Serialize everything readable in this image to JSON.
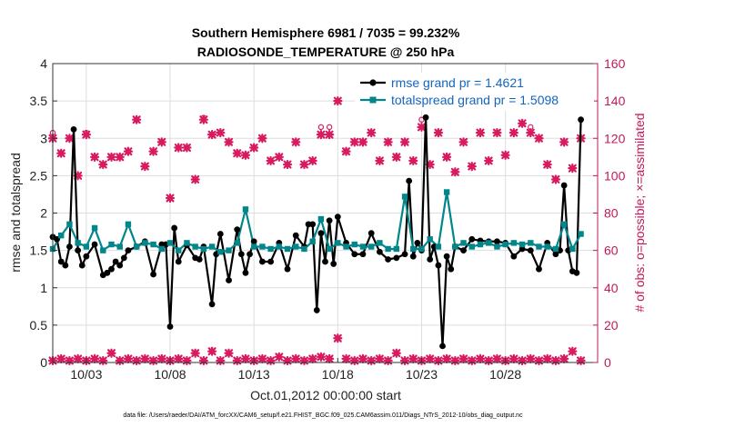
{
  "chart_data": {
    "type": "line",
    "title_line1": "Southern Hemisphere 6981 / 7035 = 99.232%",
    "title_line2": "RADIOSONDE_TEMPERATURE @ 250 hPa",
    "xlabel": "Oct.01,2012 00:00:00 start",
    "ylabel": "rmse and totalspread",
    "ylabel_right": "# of obs: o=possible; ×=assimilated",
    "xlim": [
      1,
      33.5
    ],
    "ylim": [
      0,
      4
    ],
    "ylim_right": [
      0,
      160
    ],
    "x_ticks": [
      3,
      8,
      13,
      18,
      23,
      28
    ],
    "x_tick_labels": [
      "10/03",
      "10/08",
      "10/13",
      "10/18",
      "10/23",
      "10/28"
    ],
    "y_ticks": [
      0,
      0.5,
      1,
      1.5,
      2,
      2.5,
      3,
      3.5,
      4
    ],
    "y_tick_labels": [
      "0",
      "0.5",
      "1",
      "1.5",
      "2",
      "2.5",
      "3",
      "3.5",
      "4"
    ],
    "y_right_ticks": [
      0,
      20,
      40,
      60,
      80,
      100,
      120,
      140,
      160
    ],
    "y_right_tick_labels": [
      "0",
      "20",
      "40",
      "60",
      "80",
      "100",
      "120",
      "140",
      "160"
    ],
    "grid": true,
    "legend_position": "top-right",
    "colors": {
      "rmse": "#000000",
      "spread": "#00868b",
      "obs": "#d81b60"
    },
    "series": [
      {
        "name": "rmse grand pr = 1.4621",
        "x": [
          1.0,
          1.25,
          1.5,
          1.75,
          2.0,
          2.25,
          2.5,
          2.75,
          3.0,
          3.5,
          4.0,
          4.25,
          4.5,
          4.75,
          5.0,
          5.25,
          5.5,
          6.0,
          6.5,
          7.0,
          7.5,
          7.75,
          8.0,
          8.25,
          8.5,
          9.0,
          9.5,
          9.75,
          10.0,
          10.5,
          10.75,
          11.0,
          11.5,
          12.0,
          12.25,
          12.5,
          12.75,
          13.0,
          13.5,
          14.0,
          14.5,
          15.0,
          15.5,
          16.0,
          16.25,
          16.5,
          16.75,
          17.0,
          17.25,
          17.5,
          17.75,
          18.0,
          18.5,
          19.0,
          19.5,
          20.0,
          20.5,
          21.0,
          21.5,
          22.0,
          22.25,
          22.5,
          22.75,
          23.0,
          23.25,
          23.5,
          23.75,
          24.0,
          24.25,
          24.5,
          24.75,
          25.0,
          25.5,
          26.0,
          26.5,
          27.0,
          27.5,
          28.0,
          28.5,
          29.0,
          29.5,
          30.0,
          30.5,
          31.0,
          31.25,
          31.5,
          31.75,
          32.0,
          32.25,
          32.5
        ],
        "values": [
          1.68,
          1.65,
          1.35,
          1.3,
          1.55,
          3.12,
          1.5,
          1.3,
          1.42,
          1.58,
          1.17,
          1.2,
          1.25,
          1.35,
          1.3,
          1.4,
          1.5,
          1.55,
          1.62,
          1.18,
          1.58,
          1.58,
          0.48,
          1.8,
          1.35,
          1.57,
          1.4,
          1.38,
          1.55,
          0.78,
          1.45,
          1.72,
          1.1,
          1.78,
          1.45,
          1.2,
          1.45,
          1.62,
          1.35,
          1.35,
          1.6,
          1.25,
          1.7,
          1.55,
          1.85,
          1.85,
          0.7,
          1.73,
          1.35,
          1.9,
          1.32,
          1.95,
          1.6,
          1.45,
          1.45,
          1.73,
          1.48,
          1.38,
          1.4,
          1.45,
          2.43,
          1.42,
          1.6,
          1.5,
          3.28,
          1.38,
          1.55,
          1.3,
          0.22,
          1.42,
          1.25,
          1.55,
          1.5,
          1.65,
          1.63,
          1.62,
          1.62,
          1.6,
          1.42,
          1.52,
          1.5,
          1.25,
          1.6,
          1.45,
          1.5,
          2.37,
          1.5,
          1.22,
          1.2,
          3.25
        ]
      },
      {
        "name": "totalspread grand pr = 1.5098",
        "x": [
          1.0,
          1.5,
          2.0,
          2.5,
          3.0,
          3.5,
          4.0,
          4.5,
          5.0,
          5.5,
          6.0,
          6.5,
          7.0,
          7.5,
          8.0,
          8.5,
          9.0,
          9.5,
          10.0,
          10.5,
          11.0,
          11.5,
          12.0,
          12.5,
          13.0,
          13.5,
          14.0,
          14.5,
          15.0,
          15.5,
          16.0,
          16.5,
          17.0,
          17.5,
          18.0,
          18.5,
          19.0,
          19.5,
          20.0,
          20.5,
          21.0,
          21.5,
          22.0,
          22.5,
          23.0,
          23.5,
          24.0,
          24.5,
          25.0,
          25.5,
          26.0,
          26.5,
          27.0,
          27.5,
          28.0,
          28.5,
          29.0,
          29.5,
          30.0,
          30.5,
          31.0,
          31.5,
          32.0,
          32.5
        ],
        "values": [
          1.52,
          1.7,
          1.85,
          1.6,
          1.55,
          1.8,
          1.5,
          1.58,
          1.55,
          1.85,
          1.55,
          1.6,
          1.58,
          1.52,
          1.6,
          1.5,
          1.6,
          1.55,
          1.52,
          1.55,
          1.48,
          1.5,
          1.6,
          2.05,
          1.55,
          1.55,
          1.52,
          1.55,
          1.52,
          1.55,
          1.52,
          1.62,
          1.92,
          1.52,
          1.6,
          1.55,
          1.58,
          1.55,
          1.55,
          1.6,
          1.52,
          1.52,
          2.22,
          1.52,
          1.52,
          1.65,
          1.55,
          2.28,
          1.55,
          1.6,
          1.55,
          1.58,
          1.6,
          1.55,
          1.58,
          1.6,
          1.58,
          1.6,
          1.55,
          1.55,
          1.52,
          1.85,
          1.52,
          1.72
        ]
      }
    ],
    "obs_x": [
      1,
      1.5,
      2,
      2.5,
      3,
      3.5,
      4,
      4.5,
      5,
      5.5,
      6,
      6.5,
      7,
      7.5,
      8,
      8.5,
      9,
      9.5,
      10,
      10.5,
      11,
      11.5,
      12,
      12.5,
      13,
      13.5,
      14,
      14.5,
      15,
      15.5,
      16,
      16.5,
      17,
      17.5,
      18,
      18.5,
      19,
      19.5,
      20,
      20.5,
      21,
      21.5,
      22,
      22.5,
      23,
      23.5,
      24,
      24.5,
      25,
      25.5,
      26,
      26.5,
      27,
      27.5,
      28,
      28.5,
      29,
      29.5,
      30,
      30.5,
      31,
      31.5,
      32,
      32.5
    ],
    "obs_possible": [
      123,
      112,
      120,
      100,
      123,
      110,
      106,
      110,
      110,
      113,
      130,
      105,
      113,
      118,
      88,
      115,
      115,
      98,
      131,
      122,
      123,
      118,
      112,
      111,
      115,
      120,
      108,
      110,
      106,
      118,
      106,
      108,
      126,
      126,
      140,
      113,
      118,
      118,
      123,
      108,
      118,
      110,
      118,
      108,
      130,
      106,
      123,
      110,
      102,
      118,
      105,
      123,
      108,
      123,
      111,
      123,
      128,
      126,
      120,
      106,
      98,
      118,
      104,
      120
    ],
    "obs_assimilated": [
      120,
      112,
      120,
      100,
      122,
      110,
      106,
      110,
      110,
      113,
      130,
      105,
      113,
      118,
      88,
      115,
      115,
      98,
      130,
      122,
      123,
      118,
      112,
      111,
      115,
      120,
      108,
      110,
      106,
      118,
      106,
      108,
      122,
      122,
      140,
      113,
      118,
      118,
      123,
      108,
      118,
      110,
      118,
      108,
      126,
      106,
      123,
      110,
      102,
      118,
      105,
      123,
      108,
      123,
      111,
      123,
      128,
      123,
      120,
      106,
      98,
      118,
      104,
      120
    ],
    "obs_possible_low": [
      1,
      2,
      1,
      2,
      1,
      2,
      1,
      5,
      1,
      2,
      1,
      2,
      1,
      2,
      1,
      2,
      1,
      5,
      1,
      6,
      1,
      5,
      1,
      2,
      1,
      2,
      1,
      3,
      1,
      2,
      1,
      2,
      3,
      2,
      13,
      2,
      1,
      2,
      1,
      2,
      1,
      5,
      1,
      2,
      1,
      2,
      1,
      2,
      1,
      2,
      1,
      2,
      1,
      2,
      1,
      2,
      1,
      2,
      1,
      2,
      1,
      2,
      6,
      1
    ],
    "obs_assimilated_low": [
      1,
      2,
      1,
      2,
      1,
      2,
      1,
      5,
      1,
      2,
      1,
      2,
      1,
      2,
      1,
      2,
      1,
      5,
      1,
      6,
      1,
      5,
      1,
      2,
      1,
      2,
      1,
      3,
      1,
      2,
      1,
      2,
      3,
      2,
      13,
      2,
      1,
      2,
      1,
      2,
      1,
      5,
      1,
      2,
      1,
      2,
      1,
      2,
      1,
      2,
      1,
      2,
      1,
      2,
      1,
      2,
      1,
      2,
      1,
      2,
      1,
      2,
      6,
      1
    ],
    "footer": "data file: /Users/raeder/DAI/ATM_forcXX/CAM6_setup/f.e21.FHIST_BGC.f09_025.CAM6assim.011/Diags_NTrS_2012-10/obs_diag_output.nc"
  }
}
